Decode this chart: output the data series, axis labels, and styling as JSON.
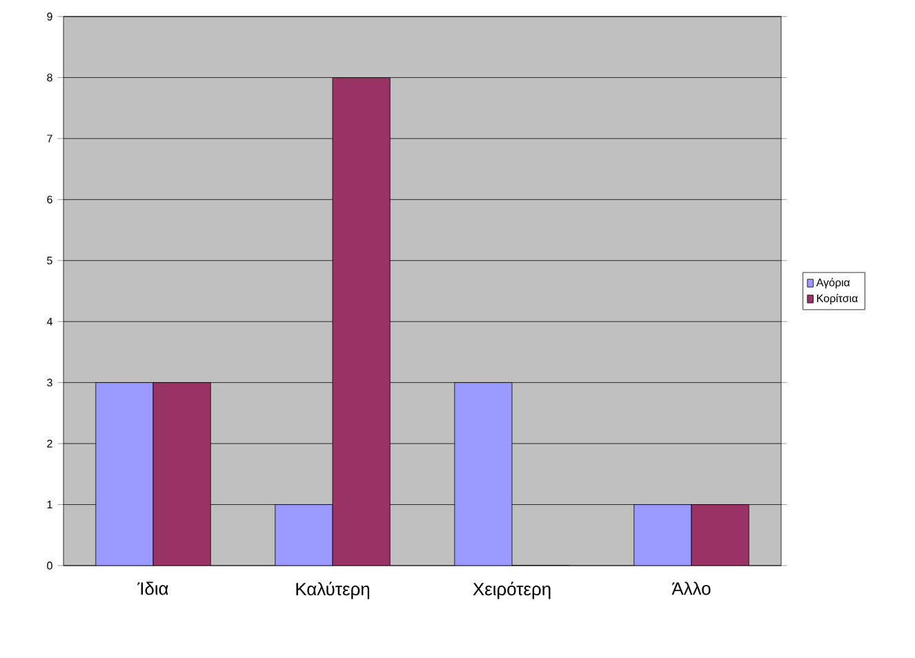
{
  "chart_data": {
    "type": "bar",
    "categories": [
      "Ίδια",
      "Καλύτερη",
      "Χειρότερη",
      "Άλλο"
    ],
    "series": [
      {
        "name": "Αγόρια",
        "color": "#9999ff",
        "values": [
          3,
          1,
          3,
          1
        ]
      },
      {
        "name": "Κορίτσια",
        "color": "#993366",
        "values": [
          3,
          8,
          0,
          1
        ]
      }
    ],
    "ylim": [
      0,
      9
    ],
    "yticks": [
      0,
      1,
      2,
      3,
      4,
      5,
      6,
      7,
      8,
      9
    ],
    "grid": "y",
    "legend": "right"
  }
}
